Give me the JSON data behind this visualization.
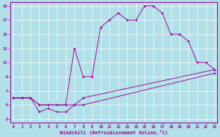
{
  "xlabel": "Windchill (Refroidissement éolien,°C)",
  "bg_color": "#b2e0e8",
  "grid_color": "#ffffff",
  "line_color": "#990099",
  "xticks": [
    0,
    1,
    2,
    3,
    4,
    5,
    6,
    7,
    8,
    9,
    10,
    11,
    12,
    13,
    14,
    15,
    16,
    17,
    18,
    19,
    20,
    21,
    22,
    23
  ],
  "yticks": [
    3,
    5,
    7,
    9,
    11,
    13,
    15,
    17,
    19
  ],
  "curve1_x": [
    0,
    1,
    2,
    3,
    4,
    5,
    6,
    7,
    8,
    9,
    10,
    11,
    12,
    13,
    14,
    15,
    16,
    17,
    18,
    19,
    20,
    21,
    22,
    23
  ],
  "curve1_y": [
    6,
    6,
    6,
    5,
    5,
    5,
    5,
    13,
    9,
    9,
    16,
    17,
    18,
    17,
    17,
    19,
    19,
    18,
    15,
    15,
    14,
    11,
    11,
    10
  ],
  "curve2_x": [
    0,
    1,
    2,
    3,
    4,
    5,
    6,
    7,
    8,
    23
  ],
  "curve2_y": [
    6,
    6,
    6,
    5,
    5,
    5,
    5,
    5,
    6,
    10
  ],
  "curve3_x": [
    0,
    1,
    2,
    3,
    4,
    5,
    6,
    7,
    8,
    23
  ],
  "curve3_y": [
    6,
    6,
    6,
    4,
    4.5,
    4,
    4,
    5,
    5,
    9.5
  ],
  "xlim": [
    -0.3,
    23.3
  ],
  "ylim": [
    2.5,
    19.5
  ],
  "figsize": [
    3.2,
    2.0
  ],
  "dpi": 100
}
